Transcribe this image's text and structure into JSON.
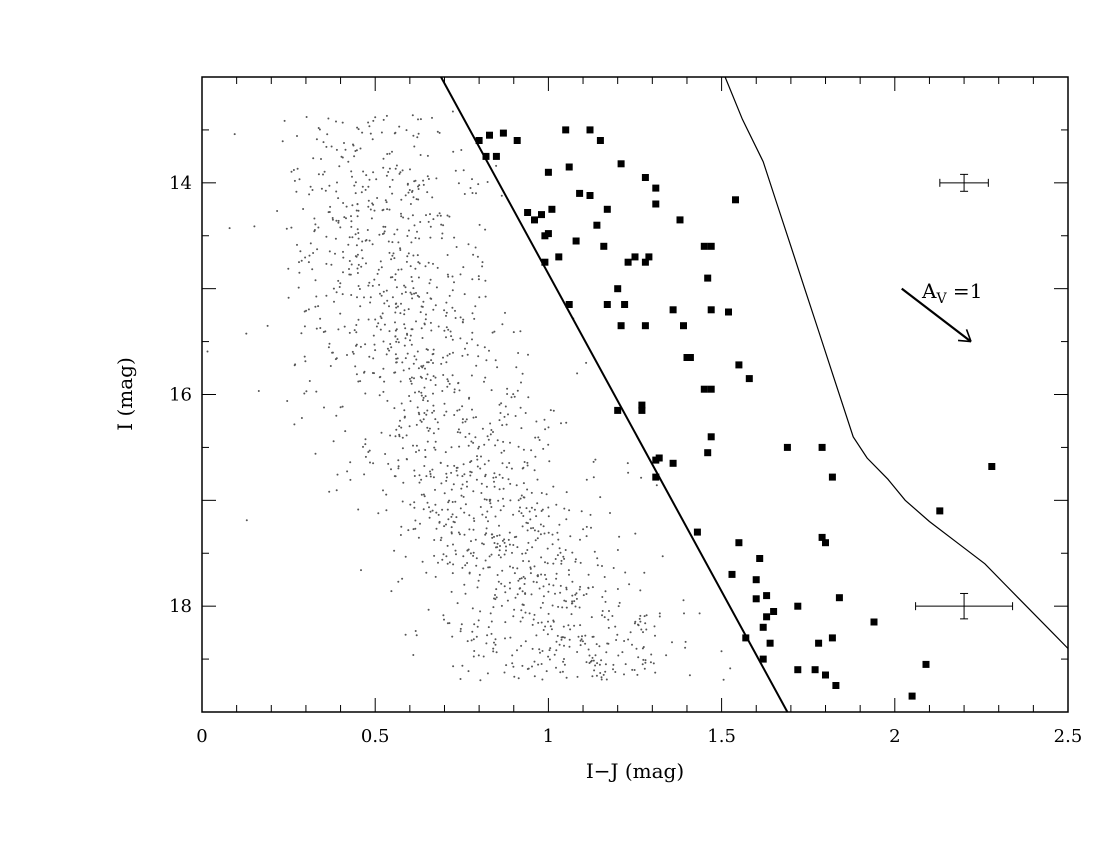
{
  "chart_data": {
    "type": "scatter",
    "title": "",
    "xlabel": "I−J (mag)",
    "ylabel": "I (mag)",
    "xlim": [
      0,
      2.5
    ],
    "ylim": [
      19,
      13
    ],
    "y_axis_inverted": true,
    "x_ticks": [
      0,
      0.5,
      1,
      1.5,
      2,
      2.5
    ],
    "x_tick_labels": [
      "0",
      "0.5",
      "1",
      "1.5",
      "2",
      "2.5"
    ],
    "y_ticks": [
      14,
      16,
      18
    ],
    "y_tick_labels": [
      "14",
      "16",
      "18"
    ],
    "grid": false,
    "annotations": [
      {
        "text_main": "A",
        "text_sub": "V",
        "text_rest": " =1",
        "type": "reddening-vector",
        "from": [
          2.02,
          15.0
        ],
        "to": [
          2.22,
          15.5
        ]
      }
    ],
    "lines": [
      {
        "name": "selection-cut",
        "x": [
          0.69,
          1.69
        ],
        "y": [
          13.0,
          19.0
        ]
      },
      {
        "name": "boundary-curve",
        "x": [
          1.51,
          1.56,
          1.62,
          1.66,
          1.7,
          1.74,
          1.78,
          1.82,
          1.85,
          1.88,
          1.92,
          1.98,
          2.03,
          2.1,
          2.18,
          2.26,
          2.32,
          2.38,
          2.44,
          2.5
        ],
        "y": [
          13.0,
          13.4,
          13.8,
          14.2,
          14.6,
          15.0,
          15.4,
          15.8,
          16.1,
          16.4,
          16.6,
          16.8,
          17.0,
          17.2,
          17.4,
          17.6,
          17.8,
          18.0,
          18.2,
          18.4
        ]
      }
    ],
    "error_bars": [
      {
        "x": 2.2,
        "y": 14.0,
        "xerr": 0.07,
        "yerr": 0.08
      },
      {
        "x": 2.2,
        "y": 18.0,
        "xerr": 0.14,
        "yerr": 0.12
      }
    ],
    "series": [
      {
        "marker": "filled-square",
        "x": [
          0.8,
          0.83,
          0.87,
          0.91,
          0.82,
          0.85,
          1.05,
          1.15,
          1.12,
          1.0,
          1.06,
          1.21,
          1.28,
          1.31,
          1.54,
          1.09,
          1.12,
          1.17,
          1.31,
          1.14,
          0.98,
          1.01,
          0.94,
          0.96,
          0.99,
          1.0,
          1.08,
          1.16,
          1.29,
          1.38,
          1.45,
          1.47,
          0.99,
          1.03,
          1.25,
          1.23,
          1.28,
          1.46,
          1.2,
          1.22,
          1.17,
          1.06,
          1.36,
          1.39,
          1.47,
          1.52,
          1.55,
          1.47,
          1.21,
          1.28,
          1.4,
          1.41,
          1.45,
          1.58,
          1.31,
          1.36,
          1.47,
          1.46,
          1.32,
          1.31,
          1.27,
          1.27,
          1.2,
          1.43,
          1.61,
          1.53,
          1.6,
          1.63,
          1.62,
          1.65,
          1.64,
          1.72,
          1.78,
          1.8,
          1.79,
          1.82,
          1.84,
          1.82,
          1.79,
          1.94,
          1.69,
          1.72,
          1.77,
          1.8,
          1.62,
          1.57,
          2.13,
          2.09,
          2.05,
          1.83,
          2.28,
          1.55,
          1.6,
          1.63
        ],
        "y": [
          13.6,
          13.55,
          13.53,
          13.6,
          13.75,
          13.75,
          13.5,
          13.6,
          13.5,
          13.9,
          13.85,
          13.82,
          13.95,
          14.05,
          14.16,
          14.1,
          14.12,
          14.25,
          14.2,
          14.4,
          14.3,
          14.25,
          14.28,
          14.35,
          14.5,
          14.48,
          14.55,
          14.6,
          14.7,
          14.35,
          14.6,
          14.6,
          14.75,
          14.7,
          14.7,
          14.75,
          14.75,
          14.9,
          15.0,
          15.15,
          15.15,
          15.15,
          15.2,
          15.35,
          15.2,
          15.22,
          15.72,
          15.95,
          15.35,
          15.35,
          15.65,
          15.65,
          15.95,
          15.85,
          16.62,
          16.65,
          16.4,
          16.55,
          16.6,
          16.78,
          16.1,
          16.15,
          16.15,
          17.3,
          17.55,
          17.7,
          17.75,
          17.9,
          18.2,
          18.05,
          18.35,
          18.0,
          18.35,
          17.4,
          17.35,
          16.78,
          17.92,
          18.3,
          16.5,
          18.15,
          16.5,
          18.6,
          18.6,
          18.65,
          18.5,
          18.3,
          17.1,
          18.55,
          18.85,
          18.75,
          16.68,
          17.4,
          17.93,
          18.1
        ]
      }
    ],
    "field_stars": {
      "marker": "small-dot",
      "approx_count": 1500,
      "description_region": "I-J 0.0 to ~1.65, I 13.3 to 18.7, below/left of selection cut"
    }
  }
}
